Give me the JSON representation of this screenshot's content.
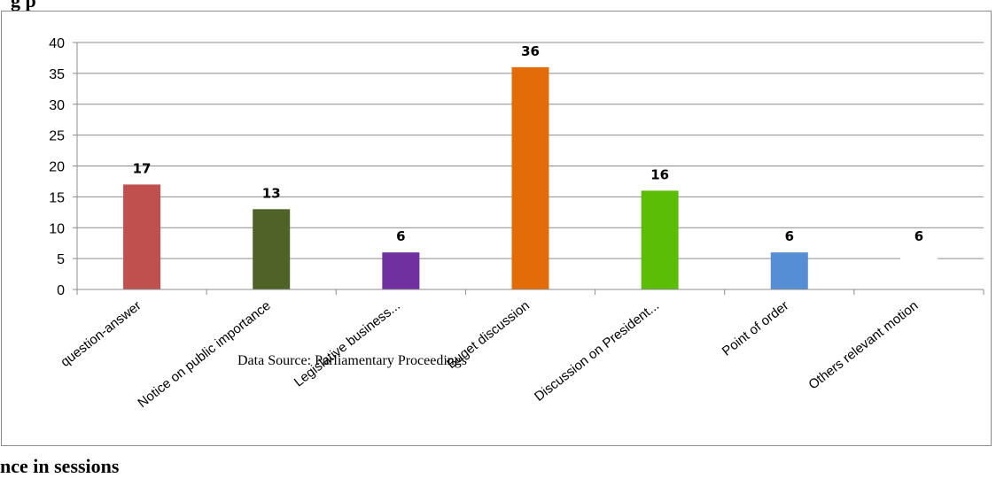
{
  "headings": {
    "top_fragment": "g                  p",
    "bottom_fragment": "nce in sessions"
  },
  "source_note": "Data Source: Parliamentary Proceedings",
  "chart_data": {
    "type": "bar",
    "categories": [
      "question-answer",
      "Notice on public importance",
      "Legislative business...",
      "Buget discussion",
      "Discussion on President...",
      "Point of order",
      "Others relevant motion"
    ],
    "values": [
      17,
      13,
      6,
      36,
      16,
      6,
      6
    ],
    "data_labels": [
      "17",
      "13",
      "6",
      "36",
      "16",
      "6",
      "6"
    ],
    "colors": [
      "#c0504d",
      "#4f6228",
      "#7030a0",
      "#e36c09",
      "#5cbd07",
      "#558ed5",
      "#ffffff"
    ],
    "ylim": [
      0,
      40
    ],
    "yticks": [
      0,
      5,
      10,
      15,
      20,
      25,
      30,
      35,
      40
    ],
    "grid": true,
    "legend": "none",
    "title": "",
    "xlabel": "",
    "ylabel": ""
  }
}
